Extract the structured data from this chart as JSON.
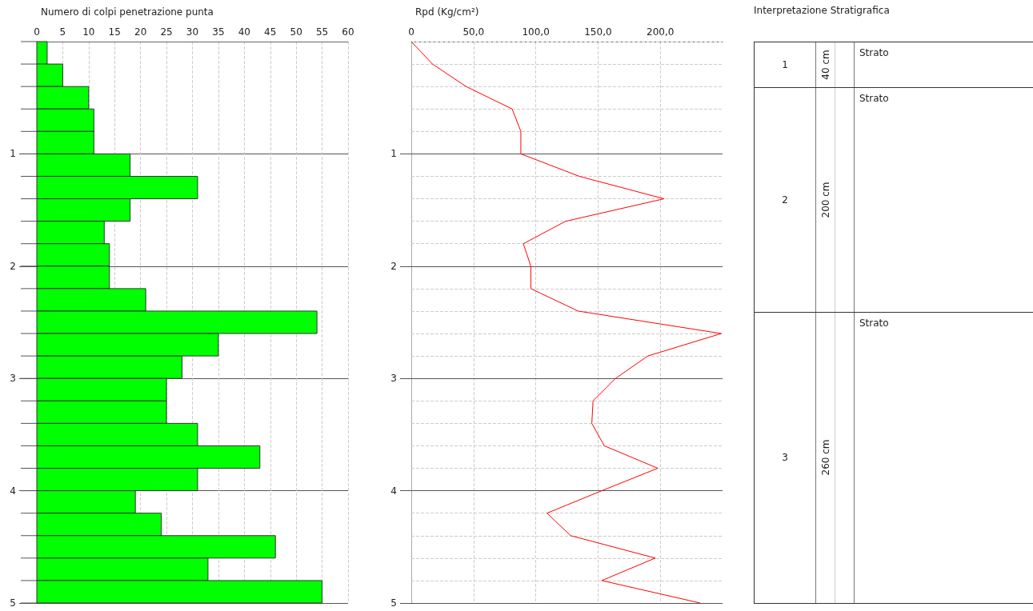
{
  "chart_data": [
    {
      "type": "histogram",
      "title": "Numero di colpi penetrazione punta",
      "orientation": "horizontal",
      "color": "#00ff00",
      "bins": [
        0,
        0.2,
        0.4,
        0.6,
        0.8,
        1.0,
        1.2,
        1.4,
        1.6,
        1.8,
        2.0,
        2.2,
        2.4,
        2.6,
        2.8,
        3.0,
        3.2,
        3.4,
        3.6,
        3.8,
        4.0,
        4.2,
        4.4,
        4.6,
        4.8,
        5.0
      ],
      "values": [
        2,
        5,
        10,
        11,
        11,
        18,
        31,
        18,
        13,
        14,
        14,
        21,
        54,
        35,
        28,
        25,
        25,
        31,
        43,
        31,
        19,
        24,
        46,
        33,
        55
      ],
      "xlim": [
        0,
        60
      ],
      "xticks": [
        0,
        5,
        10,
        15,
        20,
        25,
        30,
        35,
        40,
        45,
        50,
        55,
        60
      ],
      "ylim": [
        5,
        0
      ],
      "yticks": [
        {
          "value": 0,
          "label": null
        },
        1,
        2,
        3,
        4,
        5
      ],
      "grid": true
    },
    {
      "type": "line",
      "title": "Rpd (Kg/cm²)",
      "color": "#ff0000",
      "marker": "none",
      "line_style": "solid",
      "x": [
        0,
        17,
        44,
        81,
        88,
        88,
        135,
        203,
        124,
        90,
        96,
        96,
        134,
        249,
        190,
        164,
        146,
        145,
        155,
        198,
        153,
        109,
        128,
        196,
        153,
        232
      ],
      "values": [
        0,
        0.2,
        0.4,
        0.6,
        0.8,
        1.0,
        1.2,
        1.4,
        1.6,
        1.8,
        2.0,
        2.2,
        2.4,
        2.6,
        2.8,
        3.0,
        3.2,
        3.4,
        3.6,
        3.8,
        4.0,
        4.2,
        4.4,
        4.6,
        4.8,
        5.0
      ],
      "xlim": [
        0,
        250
      ],
      "xticks": [
        0,
        {
          "value": 50,
          "label": "50,0"
        },
        {
          "value": 100,
          "label": "100,0"
        },
        {
          "value": 150,
          "label": "150,0"
        },
        {
          "value": 200,
          "label": "200,0"
        }
      ],
      "ylim": [
        5,
        0
      ],
      "yticks": [
        {
          "value": 0,
          "label": null
        },
        {
          "value": 0.2,
          "label": null
        },
        {
          "value": 0.4,
          "label": null
        },
        {
          "value": 0.6,
          "label": null
        },
        {
          "value": 0.8,
          "label": null
        },
        1,
        {
          "value": 1.2,
          "label": null
        },
        {
          "value": 1.4,
          "label": null
        },
        {
          "value": 1.6,
          "label": null
        },
        {
          "value": 1.8,
          "label": null
        },
        2,
        {
          "value": 2.2,
          "label": null
        },
        {
          "value": 2.4,
          "label": null
        },
        {
          "value": 2.6,
          "label": null
        },
        {
          "value": 2.8,
          "label": null
        },
        3,
        {
          "value": 3.2,
          "label": null
        },
        {
          "value": 3.4,
          "label": null
        },
        {
          "value": 3.6,
          "label": null
        },
        {
          "value": 3.8,
          "label": null
        },
        4,
        {
          "value": 4.2,
          "label": null
        },
        {
          "value": 4.4,
          "label": null
        },
        {
          "value": 4.6,
          "label": null
        },
        {
          "value": 4.8,
          "label": null
        },
        5
      ],
      "grid": true
    },
    {
      "type": "other",
      "title": "Interpretazione Stratigrafica",
      "categories": [
        "1",
        "2",
        "3"
      ],
      "values": [
        40,
        200,
        260
      ],
      "value_labels": [
        "40 cm",
        "200 cm",
        "260 cm"
      ],
      "annotations": [
        "Strato",
        "Strato",
        "Strato"
      ]
    }
  ]
}
